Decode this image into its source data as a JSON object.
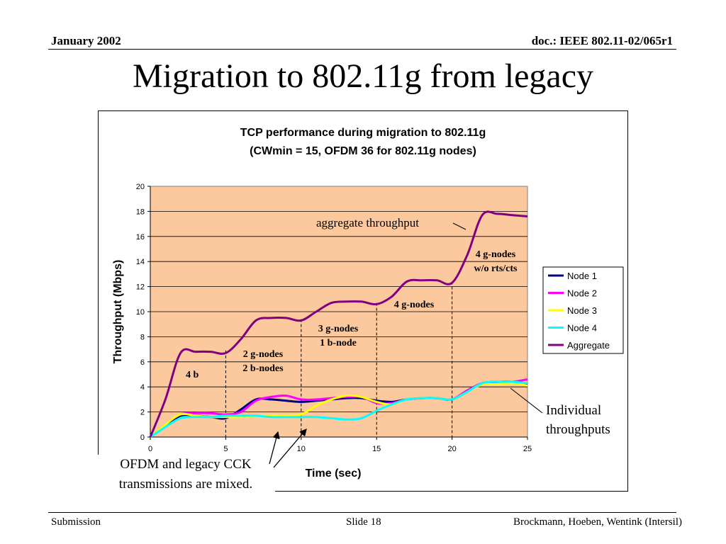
{
  "header": {
    "date": "January 2002",
    "doc_id": "doc.: IEEE 802.11-02/065r1"
  },
  "slide": {
    "title": "Migration to 802.11g from legacy"
  },
  "footer": {
    "left": "Submission",
    "center": "Slide 18",
    "right": "Brockmann, Hoeben, Wentink (Intersil)"
  },
  "chart_data": {
    "type": "line",
    "title_line1": "TCP performance during migration to 802.11g",
    "title_line2": "(CWmin = 15, OFDM 36 for 802.11g nodes)",
    "xlabel": "Time (sec)",
    "ylabel": "Throughput (Mbps)",
    "xlim": [
      0,
      25
    ],
    "ylim": [
      0,
      20
    ],
    "x_ticks": [
      0,
      5,
      10,
      15,
      20,
      25
    ],
    "y_ticks": [
      0,
      2,
      4,
      6,
      8,
      10,
      12,
      14,
      16,
      18,
      20
    ],
    "grid": "horizontal",
    "plot_background": "#fbc99d",
    "legend_position": "right",
    "phase_boundaries": [
      5,
      10,
      15,
      20
    ],
    "series": [
      {
        "name": "Node 1",
        "color": "#000080",
        "points": [
          [
            0,
            0
          ],
          [
            1,
            0.9
          ],
          [
            2,
            1.7
          ],
          [
            3,
            1.7
          ],
          [
            4,
            1.6
          ],
          [
            5,
            1.5
          ],
          [
            6,
            2.2
          ],
          [
            7,
            3.0
          ],
          [
            8,
            3.0
          ],
          [
            9,
            2.9
          ],
          [
            10,
            2.8
          ],
          [
            11,
            2.9
          ],
          [
            12,
            3.0
          ],
          [
            13,
            3.1
          ],
          [
            14,
            3.1
          ],
          [
            15,
            2.9
          ],
          [
            16,
            2.8
          ],
          [
            17,
            3.0
          ],
          [
            18,
            3.1
          ],
          [
            19,
            3.1
          ],
          [
            20,
            3.0
          ],
          [
            21,
            3.7
          ],
          [
            22,
            4.3
          ],
          [
            23,
            4.4
          ],
          [
            24,
            4.4
          ],
          [
            25,
            4.2
          ]
        ]
      },
      {
        "name": "Node 2",
        "color": "#ff00ff",
        "points": [
          [
            0,
            0
          ],
          [
            1,
            1.0
          ],
          [
            2,
            1.8
          ],
          [
            3,
            1.9
          ],
          [
            4,
            1.9
          ],
          [
            5,
            1.8
          ],
          [
            6,
            2.0
          ],
          [
            7,
            2.9
          ],
          [
            8,
            3.2
          ],
          [
            9,
            3.3
          ],
          [
            10,
            3.0
          ],
          [
            11,
            3.0
          ],
          [
            12,
            3.1
          ],
          [
            13,
            3.2
          ],
          [
            14,
            3.2
          ],
          [
            15,
            2.7
          ],
          [
            16,
            2.7
          ],
          [
            17,
            3.0
          ],
          [
            18,
            3.1
          ],
          [
            19,
            3.1
          ],
          [
            20,
            3.0
          ],
          [
            21,
            3.7
          ],
          [
            22,
            4.3
          ],
          [
            23,
            4.4
          ],
          [
            24,
            4.4
          ],
          [
            25,
            4.6
          ]
        ]
      },
      {
        "name": "Node 3",
        "color": "#ffff00",
        "points": [
          [
            0,
            0
          ],
          [
            1,
            1.0
          ],
          [
            2,
            1.8
          ],
          [
            3,
            1.7
          ],
          [
            4,
            1.6
          ],
          [
            5,
            1.6
          ],
          [
            6,
            1.6
          ],
          [
            7,
            1.7
          ],
          [
            8,
            1.7
          ],
          [
            9,
            1.7
          ],
          [
            10,
            1.8
          ],
          [
            11,
            2.5
          ],
          [
            12,
            3.0
          ],
          [
            13,
            3.3
          ],
          [
            14,
            3.2
          ],
          [
            15,
            2.8
          ],
          [
            16,
            2.6
          ],
          [
            17,
            3.0
          ],
          [
            18,
            3.1
          ],
          [
            19,
            3.1
          ],
          [
            20,
            3.0
          ],
          [
            21,
            3.6
          ],
          [
            22,
            4.2
          ],
          [
            23,
            4.2
          ],
          [
            24,
            4.3
          ],
          [
            25,
            4.1
          ]
        ]
      },
      {
        "name": "Node 4",
        "color": "#00ffff",
        "points": [
          [
            0,
            0
          ],
          [
            1,
            0.8
          ],
          [
            2,
            1.5
          ],
          [
            3,
            1.6
          ],
          [
            4,
            1.6
          ],
          [
            5,
            1.7
          ],
          [
            6,
            1.7
          ],
          [
            7,
            1.7
          ],
          [
            8,
            1.6
          ],
          [
            9,
            1.6
          ],
          [
            10,
            1.6
          ],
          [
            11,
            1.6
          ],
          [
            12,
            1.5
          ],
          [
            13,
            1.4
          ],
          [
            14,
            1.5
          ],
          [
            15,
            2.1
          ],
          [
            16,
            2.6
          ],
          [
            17,
            3.0
          ],
          [
            18,
            3.1
          ],
          [
            19,
            3.1
          ],
          [
            20,
            3.0
          ],
          [
            21,
            3.6
          ],
          [
            22,
            4.3
          ],
          [
            23,
            4.4
          ],
          [
            24,
            4.4
          ],
          [
            25,
            4.3
          ]
        ]
      },
      {
        "name": "Aggregate",
        "color": "#800080",
        "points": [
          [
            0,
            0
          ],
          [
            1,
            3.0
          ],
          [
            2,
            6.7
          ],
          [
            3,
            6.8
          ],
          [
            4,
            6.8
          ],
          [
            5,
            6.7
          ],
          [
            6,
            7.8
          ],
          [
            7,
            9.3
          ],
          [
            8,
            9.5
          ],
          [
            9,
            9.5
          ],
          [
            10,
            9.3
          ],
          [
            11,
            10.0
          ],
          [
            12,
            10.7
          ],
          [
            13,
            10.8
          ],
          [
            14,
            10.8
          ],
          [
            15,
            10.6
          ],
          [
            16,
            11.2
          ],
          [
            17,
            12.4
          ],
          [
            18,
            12.5
          ],
          [
            19,
            12.5
          ],
          [
            20,
            12.3
          ],
          [
            21,
            14.5
          ],
          [
            22,
            17.7
          ],
          [
            23,
            17.8
          ],
          [
            24,
            17.7
          ],
          [
            25,
            17.6
          ]
        ]
      }
    ],
    "annotations": {
      "aggregate": "aggregate throughput",
      "phase1": "4 b",
      "phase2_l1": "2 g-nodes",
      "phase2_l2": "2 b-nodes",
      "phase3_l1": "3 g-nodes",
      "phase3_l2": "1 b-node",
      "phase4": "4 g-nodes",
      "phase5_l1": "4 g-nodes",
      "phase5_l2": "w/o rts/cts",
      "individual_l1": "Individual",
      "individual_l2": "throughputs",
      "mixed_l1": "OFDM and legacy CCK",
      "mixed_l2": "transmissions are mixed."
    }
  }
}
